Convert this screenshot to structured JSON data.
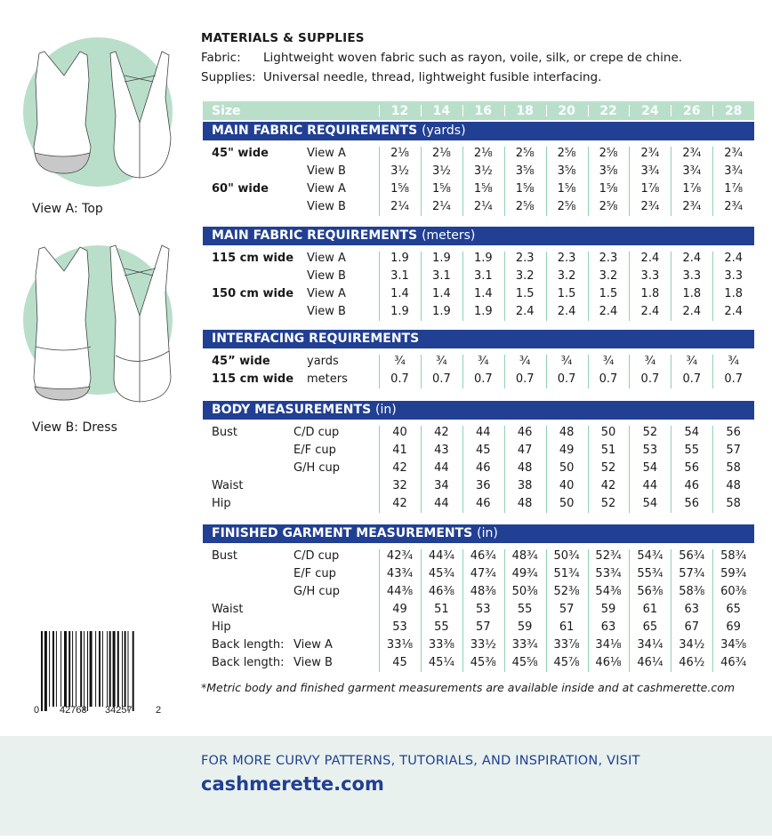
{
  "materials": {
    "title": "MATERIALS & SUPPLIES",
    "fabric_label": "Fabric:",
    "fabric": "Lightweight woven fabric such as rayon, voile, silk, or crepe de chine.",
    "supplies_label": "Supplies:",
    "supplies": "Universal needle, thread, lightweight fusible interfacing."
  },
  "views": {
    "a": "View A: Top",
    "b": "View B: Dress"
  },
  "colors": {
    "mint": "#b9dfcb",
    "navy": "#213f93",
    "footer_bg": "#e8f1ed"
  },
  "size_header": {
    "label": "Size",
    "sizes": [
      "12",
      "14",
      "16",
      "18",
      "20",
      "22",
      "24",
      "26",
      "28"
    ]
  },
  "sections": [
    {
      "title": "MAIN FABRIC REQUIREMENTS",
      "unit": "(yards)",
      "rows": [
        {
          "l1": "45\" wide",
          "l2": "View A",
          "v": [
            "2⅛",
            "2⅛",
            "2⅛",
            "2⅝",
            "2⅝",
            "2⅝",
            "2¾",
            "2¾",
            "2¾"
          ]
        },
        {
          "l1": "",
          "l2": "View B",
          "v": [
            "3½",
            "3½",
            "3½",
            "3⅝",
            "3⅝",
            "3⅝",
            "3¾",
            "3¾",
            "3¾"
          ]
        },
        {
          "l1": "60\" wide",
          "l2": "View A",
          "v": [
            "1⅝",
            "1⅝",
            "1⅝",
            "1⅝",
            "1⅝",
            "1⅝",
            "1⅞",
            "1⅞",
            "1⅞"
          ]
        },
        {
          "l1": "",
          "l2": "View B",
          "v": [
            "2¼",
            "2¼",
            "2¼",
            "2⅝",
            "2⅝",
            "2⅝",
            "2¾",
            "2¾",
            "2¾"
          ]
        }
      ]
    },
    {
      "title": "MAIN FABRIC REQUIREMENTS",
      "unit": "(meters)",
      "rows": [
        {
          "l1": "115 cm wide",
          "l2": "View A",
          "v": [
            "1.9",
            "1.9",
            "1.9",
            "2.3",
            "2.3",
            "2.3",
            "2.4",
            "2.4",
            "2.4"
          ]
        },
        {
          "l1": "",
          "l2": "View B",
          "v": [
            "3.1",
            "3.1",
            "3.1",
            "3.2",
            "3.2",
            "3.2",
            "3.3",
            "3.3",
            "3.3"
          ]
        },
        {
          "l1": "150 cm wide",
          "l2": "View A",
          "v": [
            "1.4",
            "1.4",
            "1.4",
            "1.5",
            "1.5",
            "1.5",
            "1.8",
            "1.8",
            "1.8"
          ]
        },
        {
          "l1": "",
          "l2": "View B",
          "v": [
            "1.9",
            "1.9",
            "1.9",
            "2.4",
            "2.4",
            "2.4",
            "2.4",
            "2.4",
            "2.4"
          ]
        }
      ]
    },
    {
      "title": "INTERFACING REQUIREMENTS",
      "unit": "",
      "rows": [
        {
          "l1": "45” wide",
          "l2": "yards",
          "v": [
            "¾",
            "¾",
            "¾",
            "¾",
            "¾",
            "¾",
            "¾",
            "¾",
            "¾"
          ]
        },
        {
          "l1": "115 cm wide",
          "l2": "meters",
          "v": [
            "0.7",
            "0.7",
            "0.7",
            "0.7",
            "0.7",
            "0.7",
            "0.7",
            "0.7",
            "0.7"
          ]
        }
      ]
    },
    {
      "title": "BODY MEASUREMENTS",
      "unit": "(in)",
      "rows": [
        {
          "l1": "Bust",
          "l2": "C/D cup",
          "v": [
            "40",
            "42",
            "44",
            "46",
            "48",
            "50",
            "52",
            "54",
            "56"
          ]
        },
        {
          "l1": "",
          "l2": "E/F cup",
          "v": [
            "41",
            "43",
            "45",
            "47",
            "49",
            "51",
            "53",
            "55",
            "57"
          ]
        },
        {
          "l1": "",
          "l2": "G/H cup",
          "v": [
            "42",
            "44",
            "46",
            "48",
            "50",
            "52",
            "54",
            "56",
            "58"
          ]
        },
        {
          "l1": "Waist",
          "l2": "",
          "v": [
            "32",
            "34",
            "36",
            "38",
            "40",
            "42",
            "44",
            "46",
            "48"
          ]
        },
        {
          "l1": "Hip",
          "l2": "",
          "v": [
            "42",
            "44",
            "46",
            "48",
            "50",
            "52",
            "54",
            "56",
            "58"
          ]
        }
      ]
    },
    {
      "title": "FINISHED GARMENT MEASUREMENTS",
      "unit": "(in)",
      "rows": [
        {
          "l1": "Bust",
          "l2": "C/D cup",
          "v": [
            "42¾",
            "44¾",
            "46¾",
            "48¾",
            "50¾",
            "52¾",
            "54¾",
            "56¾",
            "58¾"
          ]
        },
        {
          "l1": "",
          "l2": "E/F cup",
          "v": [
            "43¾",
            "45¾",
            "47¾",
            "49¾",
            "51¾",
            "53¾",
            "55¾",
            "57¾",
            "59¾"
          ]
        },
        {
          "l1": "",
          "l2": "G/H cup",
          "v": [
            "44⅜",
            "46⅜",
            "48⅜",
            "50⅜",
            "52⅜",
            "54⅜",
            "56⅜",
            "58⅜",
            "60⅜"
          ]
        },
        {
          "l1": "Waist",
          "l2": "",
          "v": [
            "49",
            "51",
            "53",
            "55",
            "57",
            "59",
            "61",
            "63",
            "65"
          ]
        },
        {
          "l1": "Hip",
          "l2": "",
          "v": [
            "53",
            "55",
            "57",
            "59",
            "61",
            "63",
            "65",
            "67",
            "69"
          ]
        },
        {
          "l1": "Back length:",
          "l2": "View A",
          "v": [
            "33⅛",
            "33⅜",
            "33½",
            "33¾",
            "33⅞",
            "34⅛",
            "34¼",
            "34½",
            "34⅝"
          ]
        },
        {
          "l1": "Back length:",
          "l2": "View B",
          "v": [
            "45",
            "45¼",
            "45⅜",
            "45⅝",
            "45⅞",
            "46⅛",
            "46¼",
            "46½",
            "46¾"
          ]
        }
      ]
    }
  ],
  "footnote": "*Metric body and finished garment measurements are available inside and at cashmerette.com",
  "barcode": {
    "d1": "0",
    "d2": "42768",
    "d3": "34257",
    "d4": "2"
  },
  "footer": {
    "line1": "FOR MORE CURVY PATTERNS, TUTORIALS, AND INSPIRATION, VISIT",
    "url": "cashmerette.com"
  }
}
